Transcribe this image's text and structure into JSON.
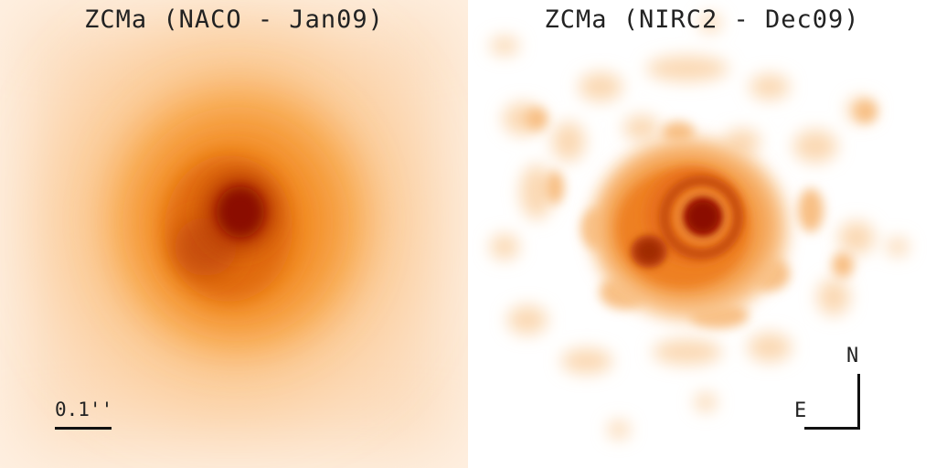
{
  "panels": [
    {
      "title": "ZCMa (NACO - Jan09)"
    },
    {
      "title": "ZCMa (NIRC2 - Dec09)"
    }
  ],
  "scale_bar": {
    "label": "0.1''"
  },
  "compass": {
    "north": "N",
    "east": "E"
  },
  "colors": {
    "background": "#ffffff",
    "halo_light": "#fde4c8",
    "halo_mid": "#f7a04a",
    "core": "#8b0a00",
    "annotation": "#111111"
  }
}
